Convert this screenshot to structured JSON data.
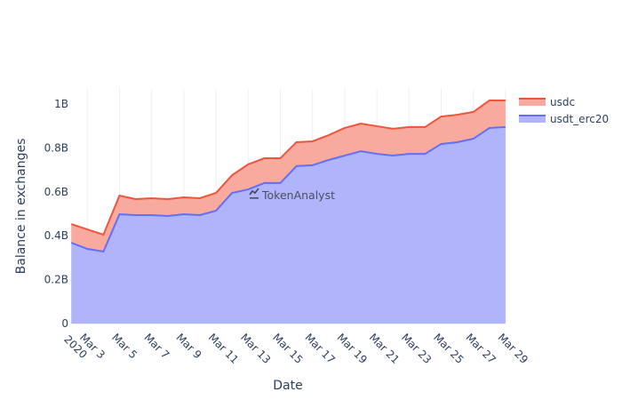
{
  "chart_data": {
    "type": "area",
    "stacked": true,
    "title": "",
    "xlabel": "Date",
    "ylabel": "Balance in exchanges",
    "ylim": [
      0,
      1.07
    ],
    "y_unit": "B",
    "y_ticks": [
      {
        "value": 0,
        "label": "0"
      },
      {
        "value": 0.2,
        "label": "0.2B"
      },
      {
        "value": 0.4,
        "label": "0.4B"
      },
      {
        "value": 0.6,
        "label": "0.6B"
      },
      {
        "value": 0.8,
        "label": "0.8B"
      },
      {
        "value": 1.0,
        "label": "1B"
      }
    ],
    "x_ticks": [
      {
        "day": 3,
        "label": "Mar 3",
        "sublabel": "2020"
      },
      {
        "day": 5,
        "label": "Mar 5"
      },
      {
        "day": 7,
        "label": "Mar 7"
      },
      {
        "day": 9,
        "label": "Mar 9"
      },
      {
        "day": 11,
        "label": "Mar 11"
      },
      {
        "day": 13,
        "label": "Mar 13"
      },
      {
        "day": 15,
        "label": "Mar 15"
      },
      {
        "day": 17,
        "label": "Mar 17"
      },
      {
        "day": 19,
        "label": "Mar 19"
      },
      {
        "day": 21,
        "label": "Mar 21"
      },
      {
        "day": 23,
        "label": "Mar 23"
      },
      {
        "day": 25,
        "label": "Mar 25"
      },
      {
        "day": 27,
        "label": "Mar 27"
      },
      {
        "day": 29,
        "label": "Mar 29"
      }
    ],
    "x": [
      "2020-03-02",
      "2020-03-03",
      "2020-03-04",
      "2020-03-05",
      "2020-03-06",
      "2020-03-07",
      "2020-03-08",
      "2020-03-09",
      "2020-03-10",
      "2020-03-11",
      "2020-03-12",
      "2020-03-13",
      "2020-03-14",
      "2020-03-15",
      "2020-03-16",
      "2020-03-17",
      "2020-03-18",
      "2020-03-19",
      "2020-03-20",
      "2020-03-21",
      "2020-03-22",
      "2020-03-23",
      "2020-03-24",
      "2020-03-25",
      "2020-03-26",
      "2020-03-27",
      "2020-03-28",
      "2020-03-29"
    ],
    "x_days": [
      2,
      3,
      4,
      5,
      6,
      7,
      8,
      9,
      10,
      11,
      12,
      13,
      14,
      15,
      16,
      17,
      18,
      19,
      20,
      21,
      22,
      23,
      24,
      25,
      26,
      27,
      28,
      29
    ],
    "series": [
      {
        "name": "usdt_erc20",
        "line_color": "#636efa",
        "fill_color": "#b0b4fb",
        "values": [
          0.368,
          0.34,
          0.328,
          0.498,
          0.494,
          0.494,
          0.49,
          0.498,
          0.494,
          0.514,
          0.595,
          0.611,
          0.64,
          0.64,
          0.717,
          0.721,
          0.745,
          0.765,
          0.785,
          0.773,
          0.765,
          0.773,
          0.773,
          0.818,
          0.826,
          0.842,
          0.891,
          0.895
        ]
      },
      {
        "name": "usdc",
        "line_color": "#ef553b",
        "fill_color": "#f7aa9d",
        "values": [
          0.085,
          0.089,
          0.077,
          0.085,
          0.073,
          0.077,
          0.077,
          0.077,
          0.077,
          0.081,
          0.081,
          0.114,
          0.113,
          0.113,
          0.109,
          0.109,
          0.113,
          0.126,
          0.126,
          0.126,
          0.122,
          0.122,
          0.122,
          0.125,
          0.125,
          0.122,
          0.125,
          0.121
        ]
      }
    ],
    "legend": {
      "position": "right-top",
      "entries": [
        "usdc",
        "usdt_erc20"
      ]
    },
    "grid": {
      "x": true,
      "y": false
    },
    "watermark": "TokenAnalyst"
  }
}
